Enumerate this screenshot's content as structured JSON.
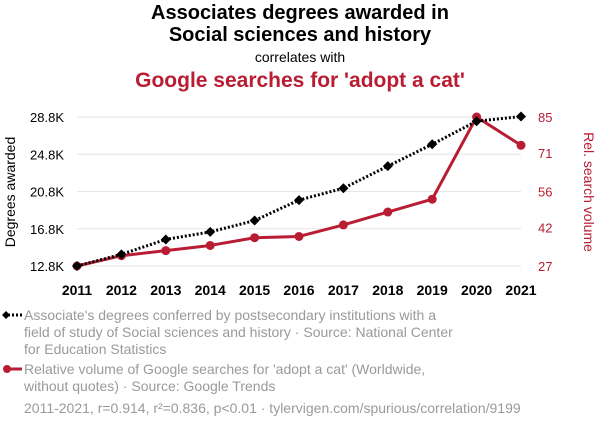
{
  "header": {
    "title_line1": "Associates degrees awarded in",
    "title_line2": "Social sciences and history",
    "correlates": "correlates with",
    "subtitle": "Google searches for 'adopt a cat'"
  },
  "colors": {
    "series1": "#000000",
    "series2": "#b81d33",
    "grid": "#e6e6e6",
    "muted": "#9a9a9a"
  },
  "chart_data": {
    "type": "line",
    "x": [
      "2011",
      "2012",
      "2013",
      "2014",
      "2015",
      "2016",
      "2017",
      "2018",
      "2019",
      "2020",
      "2021"
    ],
    "series": [
      {
        "name": "Associate's degrees conferred by postsecondary institutions with a field of study of Social sciences and history",
        "axis": "left",
        "values": [
          12800,
          14050,
          15650,
          16460,
          17680,
          19880,
          21150,
          23520,
          25870,
          28350,
          28850
        ]
      },
      {
        "name": "Relative volume of Google searches for 'adopt a cat' (Worldwide, without quotes)",
        "axis": "right",
        "values": [
          27,
          31,
          33,
          35,
          38,
          38.5,
          43,
          48,
          53,
          85,
          74
        ]
      }
    ],
    "y_left": {
      "label": "Degrees awarded",
      "ylim": [
        12800,
        28800
      ],
      "ticks": [
        12800,
        16800,
        20800,
        24800,
        28800
      ],
      "tick_labels": [
        "12.8K",
        "16.8K",
        "20.8K",
        "24.8K",
        "28.8K"
      ]
    },
    "y_right": {
      "label": "Rel. search volume",
      "ylim": [
        27,
        85
      ],
      "ticks": [
        27,
        42,
        56,
        71,
        85
      ],
      "tick_labels": [
        "27",
        "42",
        "56",
        "71",
        "85"
      ]
    },
    "grid": true
  },
  "legend": {
    "series1": "Associate's degrees conferred by postsecondary institutions with a field of study of Social sciences and history · Source: National Center for Education Statistics",
    "series2": "Relative volume of Google searches for 'adopt a cat' (Worldwide, without quotes) · Source: Google Trends"
  },
  "footer": "2011-2021, r=0.914, r²=0.836, p<0.01 · tylervigen.com/spurious/correlation/9199"
}
